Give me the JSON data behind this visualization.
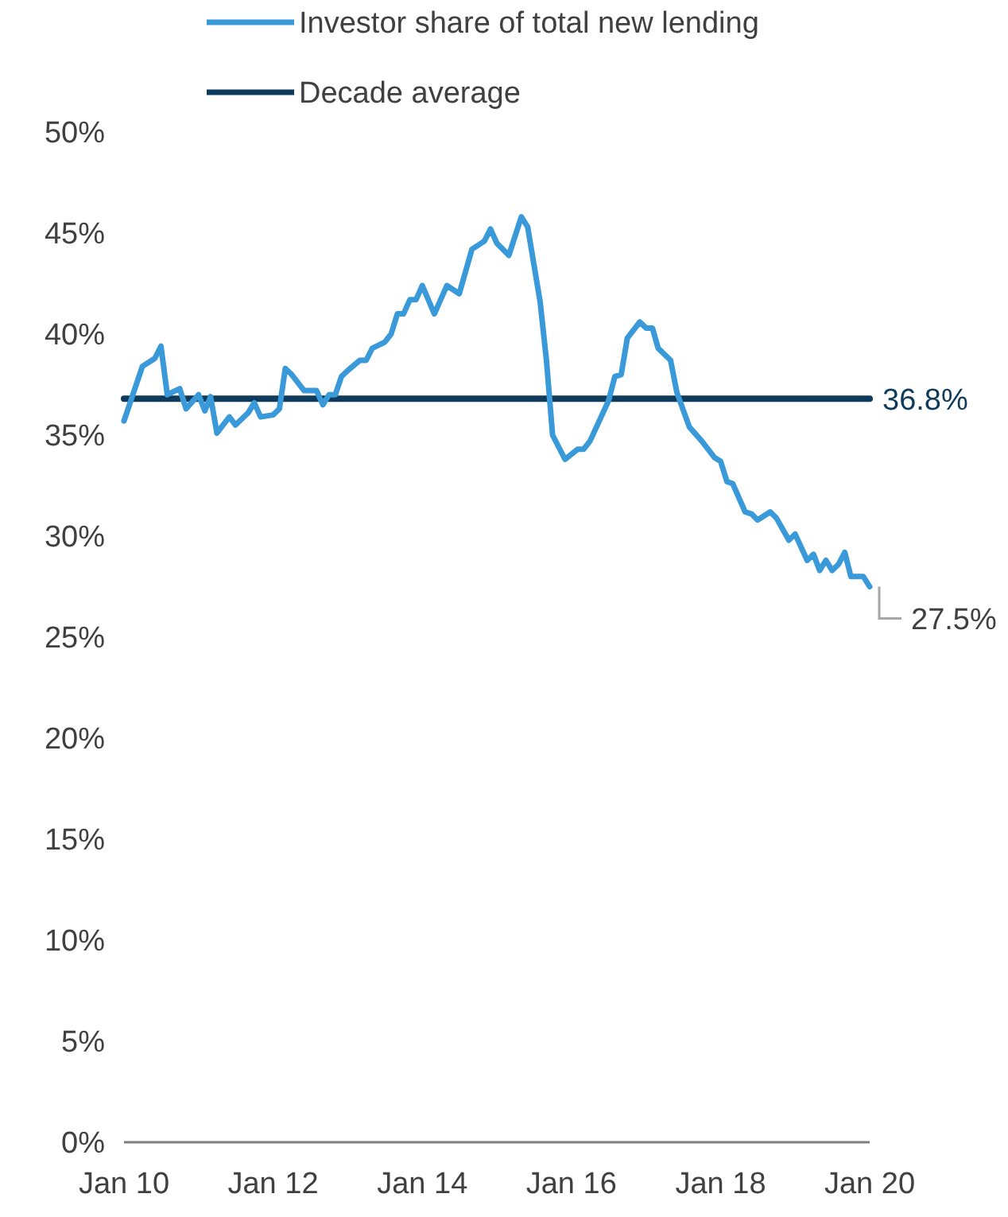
{
  "chart_data": {
    "type": "line",
    "x": [
      "2010-01",
      "2010-04",
      "2010-06",
      "2010-07",
      "2010-08",
      "2010-10",
      "2010-11",
      "2011-01",
      "2011-02",
      "2011-03",
      "2011-04",
      "2011-06",
      "2011-07",
      "2011-09",
      "2011-10",
      "2011-11",
      "2012-01",
      "2012-02",
      "2012-03",
      "2012-04",
      "2012-06",
      "2012-08",
      "2012-09",
      "2012-10",
      "2012-11",
      "2012-12",
      "2013-01",
      "2013-03",
      "2013-04",
      "2013-05",
      "2013-07",
      "2013-08",
      "2013-09",
      "2013-10",
      "2013-11",
      "2013-12",
      "2014-01",
      "2014-03",
      "2014-05",
      "2014-07",
      "2014-09",
      "2014-11",
      "2014-12",
      "2015-01",
      "2015-03",
      "2015-05",
      "2015-06",
      "2015-08",
      "2015-09",
      "2015-10",
      "2015-12",
      "2016-02",
      "2016-03",
      "2016-04",
      "2016-07",
      "2016-08",
      "2016-09",
      "2016-10",
      "2016-12",
      "2017-01",
      "2017-02",
      "2017-03",
      "2017-05",
      "2017-06",
      "2017-08",
      "2017-10",
      "2017-12",
      "2018-01",
      "2018-02",
      "2018-03",
      "2018-05",
      "2018-06",
      "2018-07",
      "2018-09",
      "2018-10",
      "2018-12",
      "2019-01",
      "2019-03",
      "2019-04",
      "2019-05",
      "2019-06",
      "2019-07",
      "2019-08",
      "2019-09",
      "2019-10",
      "2019-12",
      "2020-01"
    ],
    "series": [
      {
        "name": "Investor share of total new lending",
        "color": "#3a9ad9",
        "values": [
          35.7,
          38.4,
          38.8,
          39.4,
          37.0,
          37.3,
          36.3,
          37.0,
          36.2,
          36.9,
          35.1,
          35.9,
          35.5,
          36.1,
          36.6,
          35.9,
          36.0,
          36.3,
          38.3,
          38.0,
          37.2,
          37.2,
          36.5,
          37.0,
          37.0,
          37.9,
          38.2,
          38.7,
          38.7,
          39.3,
          39.6,
          40.0,
          41.0,
          41.0,
          41.7,
          41.7,
          42.4,
          41.0,
          42.4,
          42.0,
          44.2,
          44.6,
          45.2,
          44.5,
          43.9,
          45.8,
          45.3,
          41.6,
          38.7,
          35.0,
          33.8,
          34.3,
          34.3,
          34.7,
          36.7,
          37.9,
          38.0,
          39.8,
          40.6,
          40.3,
          40.3,
          39.3,
          38.7,
          37.1,
          35.4,
          34.7,
          33.9,
          33.7,
          32.7,
          32.6,
          31.2,
          31.1,
          30.8,
          31.2,
          30.9,
          29.8,
          30.1,
          28.8,
          29.1,
          28.3,
          28.8,
          28.3,
          28.6,
          29.2,
          28.0,
          28.0,
          27.5
        ]
      },
      {
        "name": "Decade average",
        "color": "#0e3a5c",
        "x": [
          "2010-01",
          "2020-01"
        ],
        "values": [
          36.8,
          36.8
        ]
      }
    ],
    "xlim": [
      "2010-01",
      "2020-01"
    ],
    "xticks": [
      {
        "value": "2010-01",
        "label": "Jan 10"
      },
      {
        "value": "2012-01",
        "label": "Jan 12"
      },
      {
        "value": "2014-01",
        "label": "Jan 14"
      },
      {
        "value": "2016-01",
        "label": "Jan 16"
      },
      {
        "value": "2018-01",
        "label": "Jan 18"
      },
      {
        "value": "2020-01",
        "label": "Jan 20"
      }
    ],
    "ylim": [
      0,
      50
    ],
    "yticks": [
      {
        "value": 0,
        "label": "0%"
      },
      {
        "value": 5,
        "label": "5%"
      },
      {
        "value": 10,
        "label": "10%"
      },
      {
        "value": 15,
        "label": "15%"
      },
      {
        "value": 20,
        "label": "20%"
      },
      {
        "value": 25,
        "label": "25%"
      },
      {
        "value": 30,
        "label": "30%"
      },
      {
        "value": 35,
        "label": "35%"
      },
      {
        "value": 40,
        "label": "40%"
      },
      {
        "value": 45,
        "label": "45%"
      },
      {
        "value": 50,
        "label": "50%"
      }
    ],
    "annotations": [
      {
        "text": "36.8%",
        "x": "2020-01",
        "y": 36.8
      },
      {
        "text": "27.5%",
        "x": "2020-01",
        "y": 27.5
      }
    ],
    "grid": false,
    "legend": "top",
    "marker": "none",
    "line_style": "solid"
  }
}
